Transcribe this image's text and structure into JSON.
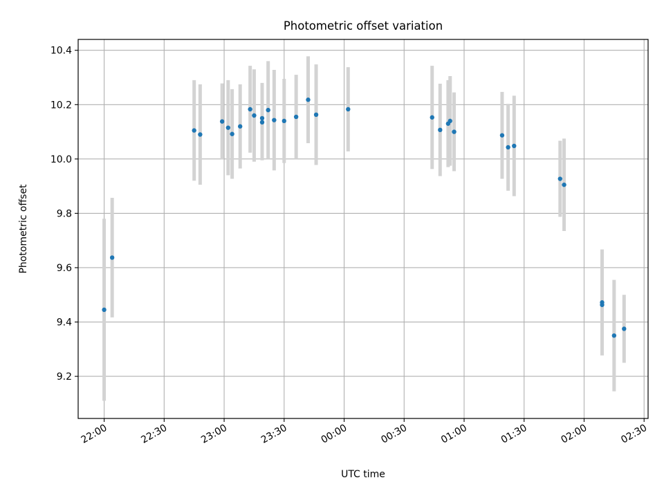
{
  "chart_data": {
    "type": "scatter",
    "title": "Photometric offset variation",
    "xlabel": "UTC time",
    "ylabel": "Photometric offset",
    "x_is_time": true,
    "xlim": [
      "21:47",
      "02:32"
    ],
    "ylim": [
      9.045,
      10.44
    ],
    "grid": true,
    "point_color": "#1f77b4",
    "errorbar_color": "#d3d3d3",
    "x_ticks": [
      "22:00",
      "22:30",
      "23:00",
      "23:30",
      "00:00",
      "00:30",
      "01:00",
      "01:30",
      "02:00",
      "02:30"
    ],
    "y_ticks": [
      "9.2",
      "9.4",
      "9.6",
      "9.8",
      "10.0",
      "10.2",
      "10.4"
    ],
    "points": [
      {
        "x": "22:00",
        "y": 9.445,
        "err": 0.335
      },
      {
        "x": "22:04",
        "y": 9.637,
        "err": 0.22
      },
      {
        "x": "22:45",
        "y": 10.105,
        "err": 0.185
      },
      {
        "x": "22:48",
        "y": 10.09,
        "err": 0.185
      },
      {
        "x": "22:59",
        "y": 10.138,
        "err": 0.14
      },
      {
        "x": "23:02",
        "y": 10.115,
        "err": 0.175
      },
      {
        "x": "23:04",
        "y": 10.092,
        "err": 0.165
      },
      {
        "x": "23:08",
        "y": 10.12,
        "err": 0.155
      },
      {
        "x": "23:13",
        "y": 10.183,
        "err": 0.16
      },
      {
        "x": "23:15",
        "y": 10.16,
        "err": 0.17
      },
      {
        "x": "23:19",
        "y": 10.15,
        "err": 0.13
      },
      {
        "x": "23:19",
        "y": 10.135,
        "err": 0.14
      },
      {
        "x": "23:22",
        "y": 10.18,
        "err": 0.18
      },
      {
        "x": "23:25",
        "y": 10.143,
        "err": 0.185
      },
      {
        "x": "23:30",
        "y": 10.14,
        "err": 0.155
      },
      {
        "x": "23:36",
        "y": 10.155,
        "err": 0.155
      },
      {
        "x": "23:42",
        "y": 10.218,
        "err": 0.16
      },
      {
        "x": "23:46",
        "y": 10.163,
        "err": 0.185
      },
      {
        "x": "00:02",
        "y": 10.183,
        "err": 0.155
      },
      {
        "x": "00:44",
        "y": 10.153,
        "err": 0.19
      },
      {
        "x": "00:48",
        "y": 10.107,
        "err": 0.17
      },
      {
        "x": "00:52",
        "y": 10.13,
        "err": 0.16
      },
      {
        "x": "00:53",
        "y": 10.14,
        "err": 0.165
      },
      {
        "x": "00:55",
        "y": 10.1,
        "err": 0.145
      },
      {
        "x": "01:19",
        "y": 10.087,
        "err": 0.16
      },
      {
        "x": "01:22",
        "y": 10.043,
        "err": 0.16
      },
      {
        "x": "01:25",
        "y": 10.048,
        "err": 0.185
      },
      {
        "x": "01:48",
        "y": 9.927,
        "err": 0.14
      },
      {
        "x": "01:50",
        "y": 9.905,
        "err": 0.17
      },
      {
        "x": "02:09",
        "y": 9.472,
        "err": 0.195
      },
      {
        "x": "02:09",
        "y": 9.463,
        "err": 0.185
      },
      {
        "x": "02:15",
        "y": 9.35,
        "err": 0.205
      },
      {
        "x": "02:20",
        "y": 9.375,
        "err": 0.125
      }
    ]
  }
}
